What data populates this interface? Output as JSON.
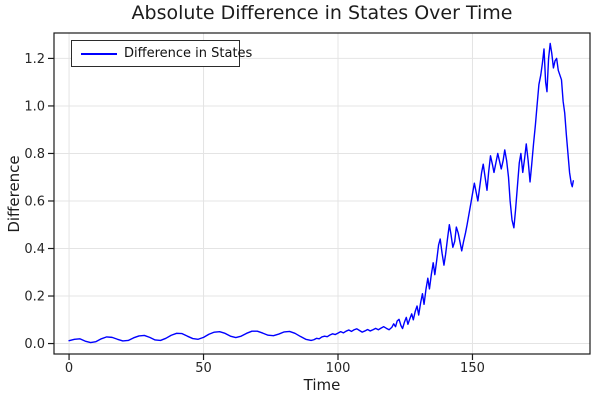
{
  "figure": {
    "colors": {
      "line": "#0000ff",
      "grid": "#e4e4e4",
      "spine": "#1a1a1a",
      "tick_text": "#262626",
      "title_text": "#1c1c1c",
      "background": "#ffffff",
      "legend_border": "#2b2b2b"
    }
  },
  "chart_data": {
    "type": "line",
    "title": "Absolute Difference in States Over Time",
    "xlabel": "Time",
    "ylabel": "Difference",
    "legend_position": "top-left",
    "grid": true,
    "xlim": [
      -5.6,
      193.7
    ],
    "ylim": [
      -0.044,
      1.307
    ],
    "xticks": [
      0,
      50,
      100,
      150
    ],
    "yticks": [
      0.0,
      0.2,
      0.4,
      0.6,
      0.8,
      1.0,
      1.2
    ],
    "series": [
      {
        "name": "Difference in States",
        "color": "#0000ff",
        "points": [
          [
            0,
            0.012
          ],
          [
            2,
            0.018
          ],
          [
            4,
            0.02
          ],
          [
            6,
            0.01
          ],
          [
            8,
            0.004
          ],
          [
            10,
            0.008
          ],
          [
            12,
            0.02
          ],
          [
            14,
            0.028
          ],
          [
            16,
            0.026
          ],
          [
            18,
            0.018
          ],
          [
            20,
            0.011
          ],
          [
            22,
            0.013
          ],
          [
            24,
            0.024
          ],
          [
            26,
            0.032
          ],
          [
            28,
            0.034
          ],
          [
            30,
            0.026
          ],
          [
            32,
            0.015
          ],
          [
            34,
            0.013
          ],
          [
            36,
            0.022
          ],
          [
            38,
            0.035
          ],
          [
            40,
            0.043
          ],
          [
            42,
            0.042
          ],
          [
            44,
            0.031
          ],
          [
            46,
            0.021
          ],
          [
            48,
            0.018
          ],
          [
            50,
            0.026
          ],
          [
            52,
            0.039
          ],
          [
            54,
            0.048
          ],
          [
            56,
            0.05
          ],
          [
            58,
            0.043
          ],
          [
            60,
            0.031
          ],
          [
            62,
            0.025
          ],
          [
            64,
            0.031
          ],
          [
            66,
            0.043
          ],
          [
            68,
            0.052
          ],
          [
            70,
            0.052
          ],
          [
            72,
            0.044
          ],
          [
            74,
            0.035
          ],
          [
            76,
            0.033
          ],
          [
            78,
            0.04
          ],
          [
            80,
            0.049
          ],
          [
            82,
            0.051
          ],
          [
            84,
            0.043
          ],
          [
            86,
            0.03
          ],
          [
            88,
            0.018
          ],
          [
            90,
            0.013
          ],
          [
            91,
            0.016
          ],
          [
            92,
            0.022
          ],
          [
            93,
            0.02
          ],
          [
            94,
            0.028
          ],
          [
            95,
            0.031
          ],
          [
            96,
            0.029
          ],
          [
            97,
            0.036
          ],
          [
            98,
            0.041
          ],
          [
            99,
            0.038
          ],
          [
            100,
            0.044
          ],
          [
            101,
            0.05
          ],
          [
            102,
            0.045
          ],
          [
            103,
            0.052
          ],
          [
            104,
            0.057
          ],
          [
            105,
            0.051
          ],
          [
            106,
            0.058
          ],
          [
            107,
            0.062
          ],
          [
            108,
            0.055
          ],
          [
            109,
            0.048
          ],
          [
            110,
            0.053
          ],
          [
            111,
            0.059
          ],
          [
            112,
            0.053
          ],
          [
            113,
            0.058
          ],
          [
            114,
            0.064
          ],
          [
            115,
            0.058
          ],
          [
            116,
            0.065
          ],
          [
            117,
            0.071
          ],
          [
            118,
            0.064
          ],
          [
            119,
            0.058
          ],
          [
            120,
            0.068
          ],
          [
            120.7,
            0.083
          ],
          [
            121.4,
            0.071
          ],
          [
            122,
            0.095
          ],
          [
            122.7,
            0.102
          ],
          [
            123.4,
            0.076
          ],
          [
            124,
            0.063
          ],
          [
            124.7,
            0.09
          ],
          [
            125.4,
            0.11
          ],
          [
            126,
            0.081
          ],
          [
            126.7,
            0.104
          ],
          [
            127.4,
            0.125
          ],
          [
            128,
            0.1
          ],
          [
            128.7,
            0.135
          ],
          [
            129.4,
            0.158
          ],
          [
            130,
            0.12
          ],
          [
            130.7,
            0.17
          ],
          [
            131.4,
            0.21
          ],
          [
            132,
            0.165
          ],
          [
            132.7,
            0.228
          ],
          [
            133.4,
            0.275
          ],
          [
            134,
            0.23
          ],
          [
            134.7,
            0.29
          ],
          [
            135.4,
            0.34
          ],
          [
            136,
            0.29
          ],
          [
            136.7,
            0.35
          ],
          [
            137.4,
            0.415
          ],
          [
            138,
            0.44
          ],
          [
            138.7,
            0.38
          ],
          [
            139.4,
            0.33
          ],
          [
            140,
            0.375
          ],
          [
            140.7,
            0.44
          ],
          [
            141.4,
            0.5
          ],
          [
            142,
            0.46
          ],
          [
            142.7,
            0.405
          ],
          [
            143.4,
            0.43
          ],
          [
            144,
            0.49
          ],
          [
            144.7,
            0.465
          ],
          [
            145.4,
            0.425
          ],
          [
            146,
            0.39
          ],
          [
            146.7,
            0.43
          ],
          [
            147.4,
            0.465
          ],
          [
            148,
            0.5
          ],
          [
            148.7,
            0.545
          ],
          [
            149.4,
            0.59
          ],
          [
            150,
            0.63
          ],
          [
            150.7,
            0.675
          ],
          [
            151.4,
            0.635
          ],
          [
            152,
            0.6
          ],
          [
            152.7,
            0.66
          ],
          [
            153.4,
            0.72
          ],
          [
            154,
            0.755
          ],
          [
            154.7,
            0.7
          ],
          [
            155.4,
            0.645
          ],
          [
            156,
            0.72
          ],
          [
            156.7,
            0.79
          ],
          [
            157.4,
            0.755
          ],
          [
            158,
            0.72
          ],
          [
            158.7,
            0.76
          ],
          [
            159.4,
            0.8
          ],
          [
            160,
            0.77
          ],
          [
            160.7,
            0.735
          ],
          [
            161.4,
            0.77
          ],
          [
            162,
            0.815
          ],
          [
            162.7,
            0.77
          ],
          [
            163.4,
            0.7
          ],
          [
            164,
            0.6
          ],
          [
            164.7,
            0.52
          ],
          [
            165.4,
            0.487
          ],
          [
            166,
            0.56
          ],
          [
            166.7,
            0.66
          ],
          [
            167.4,
            0.76
          ],
          [
            168,
            0.8
          ],
          [
            168.7,
            0.72
          ],
          [
            169.4,
            0.78
          ],
          [
            170,
            0.84
          ],
          [
            170.7,
            0.77
          ],
          [
            171.4,
            0.68
          ],
          [
            172,
            0.75
          ],
          [
            172.7,
            0.84
          ],
          [
            173.4,
            0.92
          ],
          [
            174,
            1.0
          ],
          [
            174.7,
            1.09
          ],
          [
            175.4,
            1.13
          ],
          [
            176,
            1.18
          ],
          [
            176.6,
            1.24
          ],
          [
            177.2,
            1.1
          ],
          [
            177.7,
            1.06
          ],
          [
            178.3,
            1.2
          ],
          [
            178.9,
            1.263
          ],
          [
            179.5,
            1.22
          ],
          [
            180.1,
            1.16
          ],
          [
            180.7,
            1.19
          ],
          [
            181.3,
            1.2
          ],
          [
            181.9,
            1.15
          ],
          [
            182.5,
            1.13
          ],
          [
            183.1,
            1.11
          ],
          [
            183.7,
            1.02
          ],
          [
            184.3,
            0.97
          ],
          [
            184.9,
            0.88
          ],
          [
            185.5,
            0.8
          ],
          [
            186.1,
            0.72
          ],
          [
            186.7,
            0.675
          ],
          [
            187.1,
            0.66
          ],
          [
            187.5,
            0.685
          ]
        ]
      }
    ]
  }
}
